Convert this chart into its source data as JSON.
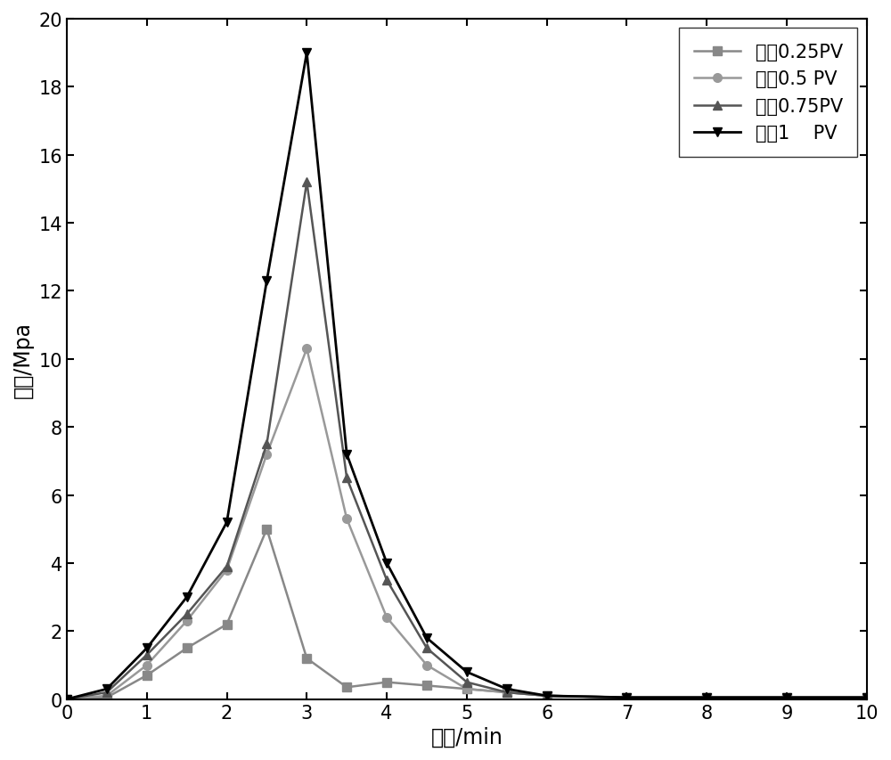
{
  "title": "",
  "xlabel": "时间/min",
  "ylabel": "压力/Mpa",
  "xlim": [
    0,
    10
  ],
  "ylim": [
    0,
    20
  ],
  "xticks": [
    0,
    1,
    2,
    3,
    4,
    5,
    6,
    7,
    8,
    9,
    10
  ],
  "yticks": [
    0,
    2,
    4,
    6,
    8,
    10,
    12,
    14,
    16,
    18,
    20
  ],
  "series": [
    {
      "label": "注入0.25PV",
      "color": "#888888",
      "marker": "s",
      "markersize": 7,
      "linewidth": 1.8,
      "x": [
        0,
        0.5,
        1,
        1.5,
        2,
        2.5,
        3,
        3.5,
        4,
        4.5,
        5,
        5.5,
        6,
        7,
        8,
        9,
        10
      ],
      "y": [
        0,
        0.05,
        0.7,
        1.5,
        2.2,
        5.0,
        1.2,
        0.35,
        0.5,
        0.4,
        0.3,
        0.2,
        0.1,
        0.05,
        0.05,
        0.05,
        0.05
      ]
    },
    {
      "label": "注入0.5 PV",
      "color": "#999999",
      "marker": "o",
      "markersize": 7,
      "linewidth": 1.8,
      "x": [
        0,
        0.5,
        1,
        1.5,
        2,
        2.5,
        3,
        3.5,
        4,
        4.5,
        5,
        5.5,
        6,
        7,
        8,
        9,
        10
      ],
      "y": [
        0,
        0.1,
        1.0,
        2.3,
        3.8,
        7.2,
        10.3,
        5.3,
        2.4,
        1.0,
        0.3,
        0.2,
        0.1,
        0.05,
        0.05,
        0.05,
        0.05
      ]
    },
    {
      "label": "注入0.75PV",
      "color": "#555555",
      "marker": "^",
      "markersize": 7,
      "linewidth": 1.8,
      "x": [
        0,
        0.5,
        1,
        1.5,
        2,
        2.5,
        3,
        3.5,
        4,
        4.5,
        5,
        5.5,
        6,
        7,
        8,
        9,
        10
      ],
      "y": [
        0,
        0.2,
        1.3,
        2.5,
        3.9,
        7.5,
        15.2,
        6.5,
        3.5,
        1.5,
        0.5,
        0.2,
        0.1,
        0.05,
        0.05,
        0.05,
        0.05
      ]
    },
    {
      "label": "注入1    PV",
      "color": "#000000",
      "marker": "v",
      "markersize": 7,
      "linewidth": 2.0,
      "x": [
        0,
        0.5,
        1,
        1.5,
        2,
        2.5,
        3,
        3.5,
        4,
        4.5,
        5,
        5.5,
        6,
        7,
        8,
        9,
        10
      ],
      "y": [
        0,
        0.3,
        1.5,
        3.0,
        5.2,
        12.3,
        19.0,
        7.2,
        4.0,
        1.8,
        0.8,
        0.3,
        0.1,
        0.05,
        0.05,
        0.05,
        0.05
      ]
    }
  ],
  "legend_fontsize": 15,
  "axis_fontsize": 17,
  "tick_fontsize": 15,
  "background_color": "#ffffff",
  "fig_width": 10.0,
  "fig_height": 8.54
}
